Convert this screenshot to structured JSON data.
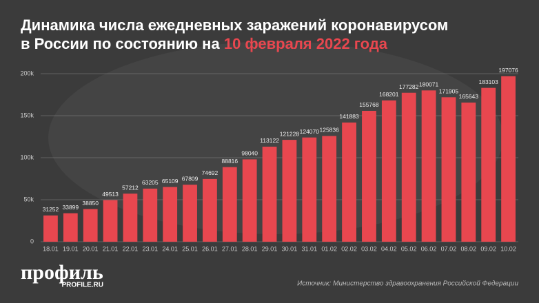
{
  "chart_data": {
    "type": "bar",
    "title": "Динамика числа ежедневных заражений коронавирусом",
    "title_line2": "в России по состоянию на",
    "title_date": "10 февраля 2022 года",
    "categories": [
      "18.01",
      "19.01",
      "20.01",
      "21.01",
      "22.01",
      "23.01",
      "24.01",
      "25.01",
      "26.01",
      "27.01",
      "28.01",
      "29.01",
      "30.01",
      "31.01",
      "01.02",
      "02.02",
      "03.02",
      "04.02",
      "05.02",
      "06.02",
      "07.02",
      "08.02",
      "09.02",
      "10.02"
    ],
    "values": [
      31252,
      33899,
      38850,
      49513,
      57212,
      63205,
      65109,
      67809,
      74692,
      88816,
      98040,
      113122,
      121228,
      124070,
      125836,
      141883,
      155768,
      168201,
      177282,
      180071,
      171905,
      165643,
      183103,
      197076
    ],
    "color": "#e8474f",
    "ylim": [
      0,
      200000
    ],
    "yticks": [
      0,
      {
        "value": 50000,
        "label": "50k"
      },
      {
        "value": 100000,
        "label": "100k"
      },
      {
        "value": 150000,
        "label": "150k"
      },
      {
        "value": 200000,
        "label": "200k"
      }
    ],
    "grid": true,
    "logo": "профиль",
    "logo_site": "PROFILE.RU",
    "source": "Источник: Министерство здравоохранения Российской Федерации"
  }
}
